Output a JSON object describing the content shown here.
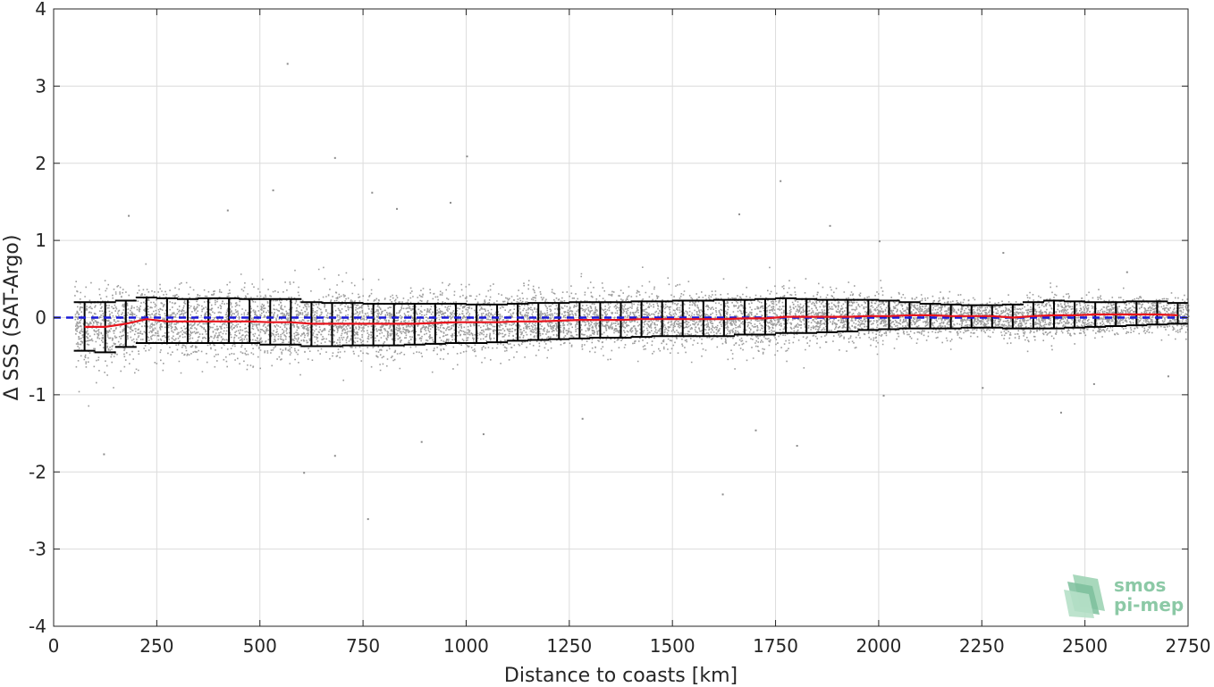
{
  "chart_data": {
    "type": "scatter",
    "title": "",
    "xlabel": "Distance to coasts [km]",
    "ylabel": "Δ SSS (SAT-Argo)",
    "xlim": [
      0,
      2750
    ],
    "ylim": [
      -4,
      4
    ],
    "xticks": [
      0,
      250,
      500,
      750,
      1000,
      1250,
      1500,
      1750,
      2000,
      2250,
      2500,
      2750
    ],
    "yticks": [
      -4,
      -3,
      -2,
      -1,
      0,
      1,
      2,
      3,
      4
    ],
    "grid": true,
    "colors": {
      "scatter": "#8c8c8c",
      "errorbar": "#000000",
      "median": "#e8141d",
      "zero_line": "#1a1ad9",
      "logo": "#8cc9a6"
    },
    "series": [
      {
        "type": "errorbar",
        "x": [
          75,
          125,
          175,
          225,
          275,
          325,
          375,
          425,
          475,
          525,
          575,
          625,
          675,
          725,
          775,
          825,
          875,
          925,
          975,
          1025,
          1075,
          1125,
          1175,
          1225,
          1275,
          1325,
          1375,
          1425,
          1475,
          1525,
          1575,
          1625,
          1675,
          1725,
          1775,
          1825,
          1875,
          1925,
          1975,
          2025,
          2075,
          2125,
          2175,
          2225,
          2275,
          2325,
          2375,
          2425,
          2475,
          2525,
          2575,
          2625,
          2675,
          2725
        ],
        "center": [
          -0.12,
          -0.12,
          -0.08,
          -0.02,
          -0.05,
          -0.05,
          -0.05,
          -0.05,
          -0.05,
          -0.06,
          -0.06,
          -0.08,
          -0.08,
          -0.08,
          -0.08,
          -0.08,
          -0.08,
          -0.07,
          -0.06,
          -0.06,
          -0.06,
          -0.05,
          -0.05,
          -0.04,
          -0.03,
          -0.03,
          -0.03,
          -0.02,
          -0.02,
          -0.02,
          -0.02,
          -0.02,
          -0.01,
          -0.01,
          0.01,
          0.01,
          0.01,
          0.01,
          0.02,
          0.02,
          0.03,
          0.03,
          0.02,
          0.02,
          0.02,
          0.0,
          0.02,
          0.03,
          0.03,
          0.04,
          0.04,
          0.04,
          0.04,
          0.03
        ],
        "lower": [
          -0.43,
          -0.45,
          -0.38,
          -0.33,
          -0.33,
          -0.33,
          -0.33,
          -0.33,
          -0.33,
          -0.35,
          -0.35,
          -0.37,
          -0.37,
          -0.36,
          -0.36,
          -0.36,
          -0.35,
          -0.34,
          -0.33,
          -0.33,
          -0.32,
          -0.3,
          -0.29,
          -0.28,
          -0.27,
          -0.26,
          -0.26,
          -0.25,
          -0.24,
          -0.24,
          -0.24,
          -0.24,
          -0.22,
          -0.22,
          -0.2,
          -0.2,
          -0.19,
          -0.18,
          -0.16,
          -0.15,
          -0.14,
          -0.14,
          -0.14,
          -0.13,
          -0.13,
          -0.14,
          -0.14,
          -0.14,
          -0.13,
          -0.12,
          -0.11,
          -0.1,
          -0.09,
          -0.08
        ],
        "upper": [
          0.2,
          0.2,
          0.22,
          0.26,
          0.25,
          0.24,
          0.25,
          0.25,
          0.24,
          0.24,
          0.24,
          0.2,
          0.19,
          0.19,
          0.18,
          0.18,
          0.18,
          0.18,
          0.18,
          0.17,
          0.17,
          0.18,
          0.19,
          0.19,
          0.2,
          0.2,
          0.2,
          0.21,
          0.21,
          0.22,
          0.22,
          0.23,
          0.23,
          0.24,
          0.25,
          0.24,
          0.23,
          0.23,
          0.23,
          0.22,
          0.2,
          0.18,
          0.17,
          0.16,
          0.16,
          0.17,
          0.2,
          0.22,
          0.21,
          0.2,
          0.2,
          0.21,
          0.21,
          0.19
        ]
      },
      {
        "type": "line",
        "role": "median",
        "x": [
          75,
          125,
          175,
          225,
          275,
          325,
          375,
          425,
          475,
          525,
          575,
          625,
          675,
          725,
          775,
          825,
          875,
          925,
          975,
          1025,
          1075,
          1125,
          1175,
          1225,
          1275,
          1325,
          1375,
          1425,
          1475,
          1525,
          1575,
          1625,
          1675,
          1725,
          1775,
          1825,
          1875,
          1925,
          1975,
          2025,
          2075,
          2125,
          2175,
          2225,
          2275,
          2325,
          2375,
          2425,
          2475,
          2525,
          2575,
          2625,
          2675,
          2725
        ],
        "values": [
          -0.12,
          -0.12,
          -0.08,
          -0.02,
          -0.05,
          -0.05,
          -0.05,
          -0.05,
          -0.05,
          -0.06,
          -0.06,
          -0.08,
          -0.08,
          -0.08,
          -0.08,
          -0.08,
          -0.08,
          -0.07,
          -0.06,
          -0.06,
          -0.06,
          -0.05,
          -0.05,
          -0.04,
          -0.03,
          -0.03,
          -0.03,
          -0.02,
          -0.02,
          -0.02,
          -0.02,
          -0.02,
          -0.01,
          -0.01,
          0.01,
          0.01,
          0.01,
          0.01,
          0.02,
          0.02,
          0.03,
          0.03,
          0.02,
          0.02,
          0.02,
          0.0,
          0.02,
          0.03,
          0.03,
          0.04,
          0.04,
          0.04,
          0.04,
          0.03
        ]
      },
      {
        "type": "line",
        "role": "zero-reference",
        "style": "dashed",
        "x": [
          0,
          2750
        ],
        "values": [
          0,
          0
        ]
      },
      {
        "type": "scatter",
        "role": "collocated differences",
        "outliers": [
          {
            "x": 565,
            "y": 3.3
          },
          {
            "x": 680,
            "y": 2.08
          },
          {
            "x": 1000,
            "y": 2.1
          },
          {
            "x": 1760,
            "y": 1.78
          },
          {
            "x": 530,
            "y": 1.66
          },
          {
            "x": 770,
            "y": 1.63
          },
          {
            "x": 830,
            "y": 1.42
          },
          {
            "x": 960,
            "y": 1.5
          },
          {
            "x": 1660,
            "y": 1.35
          },
          {
            "x": 420,
            "y": 1.4
          },
          {
            "x": 180,
            "y": 1.33
          },
          {
            "x": 1880,
            "y": 1.2
          },
          {
            "x": 120,
            "y": -1.76
          },
          {
            "x": 605,
            "y": -2.0
          },
          {
            "x": 760,
            "y": -2.6
          },
          {
            "x": 1620,
            "y": -2.28
          },
          {
            "x": 680,
            "y": -1.78
          },
          {
            "x": 890,
            "y": -1.6
          },
          {
            "x": 1040,
            "y": -1.5
          },
          {
            "x": 1280,
            "y": -1.3
          },
          {
            "x": 1700,
            "y": -1.45
          },
          {
            "x": 1800,
            "y": -1.65
          },
          {
            "x": 2440,
            "y": -1.22
          },
          {
            "x": 2010,
            "y": -1.0
          },
          {
            "x": 2250,
            "y": -0.9
          },
          {
            "x": 2520,
            "y": -0.85
          },
          {
            "x": 2700,
            "y": -0.75
          },
          {
            "x": 2000,
            "y": 1.0
          },
          {
            "x": 2300,
            "y": 0.85
          },
          {
            "x": 2600,
            "y": 0.6
          }
        ]
      }
    ]
  },
  "logo": {
    "line1": "smos",
    "line2": "pi-mep"
  }
}
